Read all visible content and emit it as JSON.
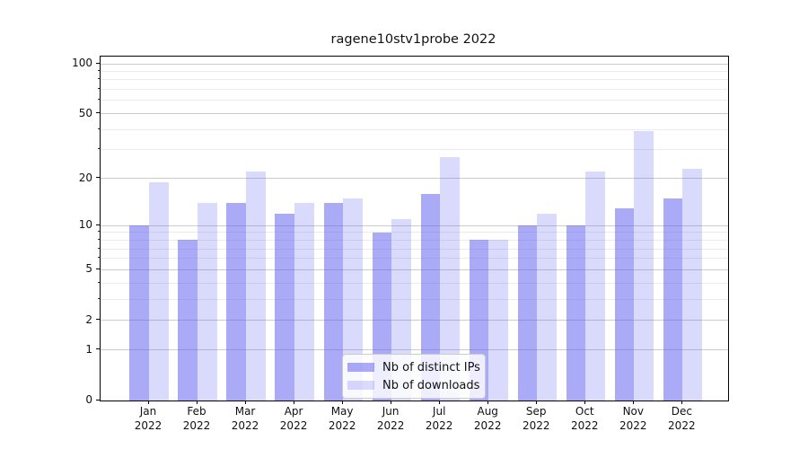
{
  "title": "ragene10stv1probe 2022",
  "legend": {
    "items": [
      {
        "label": "Nb of distinct IPs"
      },
      {
        "label": "Nb of downloads"
      }
    ]
  },
  "chart_data": {
    "type": "bar",
    "title": "ragene10stv1probe 2022",
    "categories": [
      "Jan 2022",
      "Feb 2022",
      "Mar 2022",
      "Apr 2022",
      "May 2022",
      "Jun 2022",
      "Jul 2022",
      "Aug 2022",
      "Sep 2022",
      "Oct 2022",
      "Nov 2022",
      "Dec 2022"
    ],
    "series": [
      {
        "name": "Nb of distinct IPs",
        "values": [
          10,
          8,
          14,
          12,
          14,
          9,
          16,
          8,
          10,
          10,
          13,
          15
        ],
        "color_rgba": "rgba(85,85,240,0.5)",
        "color_hex_on_white": "#aaaaf7"
      },
      {
        "name": "Nb of downloads",
        "values": [
          19,
          14,
          22,
          14,
          15,
          11,
          27,
          8,
          12,
          22,
          39,
          23
        ],
        "color_rgba": "rgba(85,85,240,0.22)",
        "color_hex_on_white": "#d8d8fb"
      }
    ],
    "xlabel": "",
    "ylabel": "",
    "yscale": "log1p",
    "ylim": [
      0,
      110
    ],
    "y_major_ticks": [
      0,
      1,
      2,
      5,
      10,
      20,
      50,
      100
    ],
    "y_minor_ticks": [
      3,
      4,
      6,
      7,
      8,
      9,
      30,
      40,
      60,
      70,
      80,
      90
    ],
    "grid": {
      "which": "both",
      "major_color": "#cccccc",
      "minor_color": "#ebebeb"
    },
    "legend_position": "lower center",
    "bar_layout": "grouped-pair"
  }
}
